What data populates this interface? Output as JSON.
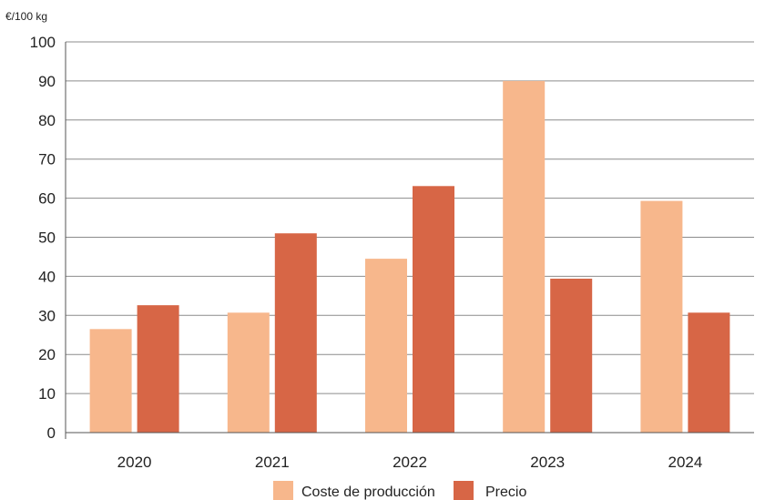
{
  "chart_data": {
    "type": "bar",
    "title": "",
    "unit_label": "€/100 kg",
    "xlabel": "",
    "ylabel": "",
    "categories": [
      "2020",
      "2021",
      "2022",
      "2023",
      "2024"
    ],
    "ylim": [
      0,
      100
    ],
    "yticks": [
      "0",
      "10",
      "20",
      "30",
      "40",
      "50",
      "60",
      "70",
      "80",
      "90",
      "100"
    ],
    "grid": true,
    "legend_position": "bottom-center",
    "series": [
      {
        "name": "Coste de producción",
        "color": "#f7b78c",
        "values": [
          26.5,
          30.7,
          44.5,
          90,
          59.3
        ]
      },
      {
        "name": "Precio",
        "color": "#d76646",
        "values": [
          32.6,
          51,
          63.1,
          39.4,
          30.7
        ]
      }
    ],
    "grid_color": "#8c8c8c",
    "axis_color": "#555555"
  }
}
